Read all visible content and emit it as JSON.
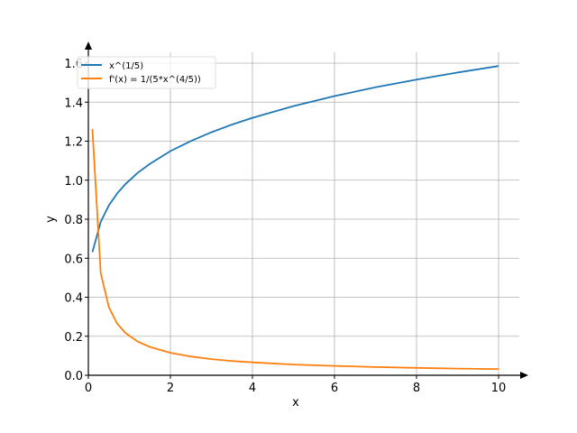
{
  "chart_data": {
    "type": "line",
    "title": "",
    "xlabel": "x",
    "ylabel": "y",
    "xlim": [
      0,
      10.7
    ],
    "ylim": [
      0,
      1.655
    ],
    "grid": true,
    "legend_position": "top-left",
    "xticks": [
      0,
      2,
      4,
      6,
      8,
      10
    ],
    "xtick_labels": [
      "0",
      "2",
      "4",
      "6",
      "8",
      "10"
    ],
    "yticks": [
      0,
      0.2,
      0.4,
      0.6,
      0.8,
      1.0,
      1.2,
      1.4,
      1.6
    ],
    "ytick_labels": [
      "0.0",
      "0.2",
      "0.4",
      "0.6",
      "0.8",
      "1.0",
      "1.2",
      "1.4",
      "1.6"
    ],
    "x": [
      0.1,
      0.3,
      0.5,
      0.7,
      0.9,
      1.2,
      1.5,
      2,
      2.5,
      3,
      3.5,
      4,
      5,
      6,
      7,
      8,
      9,
      10
    ],
    "series": [
      {
        "name": "x^(1/5)",
        "color": "#1f77b4",
        "values": [
          0.631,
          0.786,
          0.871,
          0.931,
          0.979,
          1.037,
          1.084,
          1.149,
          1.201,
          1.246,
          1.285,
          1.32,
          1.38,
          1.431,
          1.476,
          1.516,
          1.552,
          1.585
        ]
      },
      {
        "name": "f'(x) = 1/(5*x^(4/5))",
        "color": "#ff7f0e",
        "values": [
          1.262,
          0.524,
          0.348,
          0.266,
          0.218,
          0.173,
          0.145,
          0.115,
          0.096,
          0.083,
          0.073,
          0.066,
          0.055,
          0.048,
          0.042,
          0.038,
          0.034,
          0.032
        ]
      }
    ]
  }
}
